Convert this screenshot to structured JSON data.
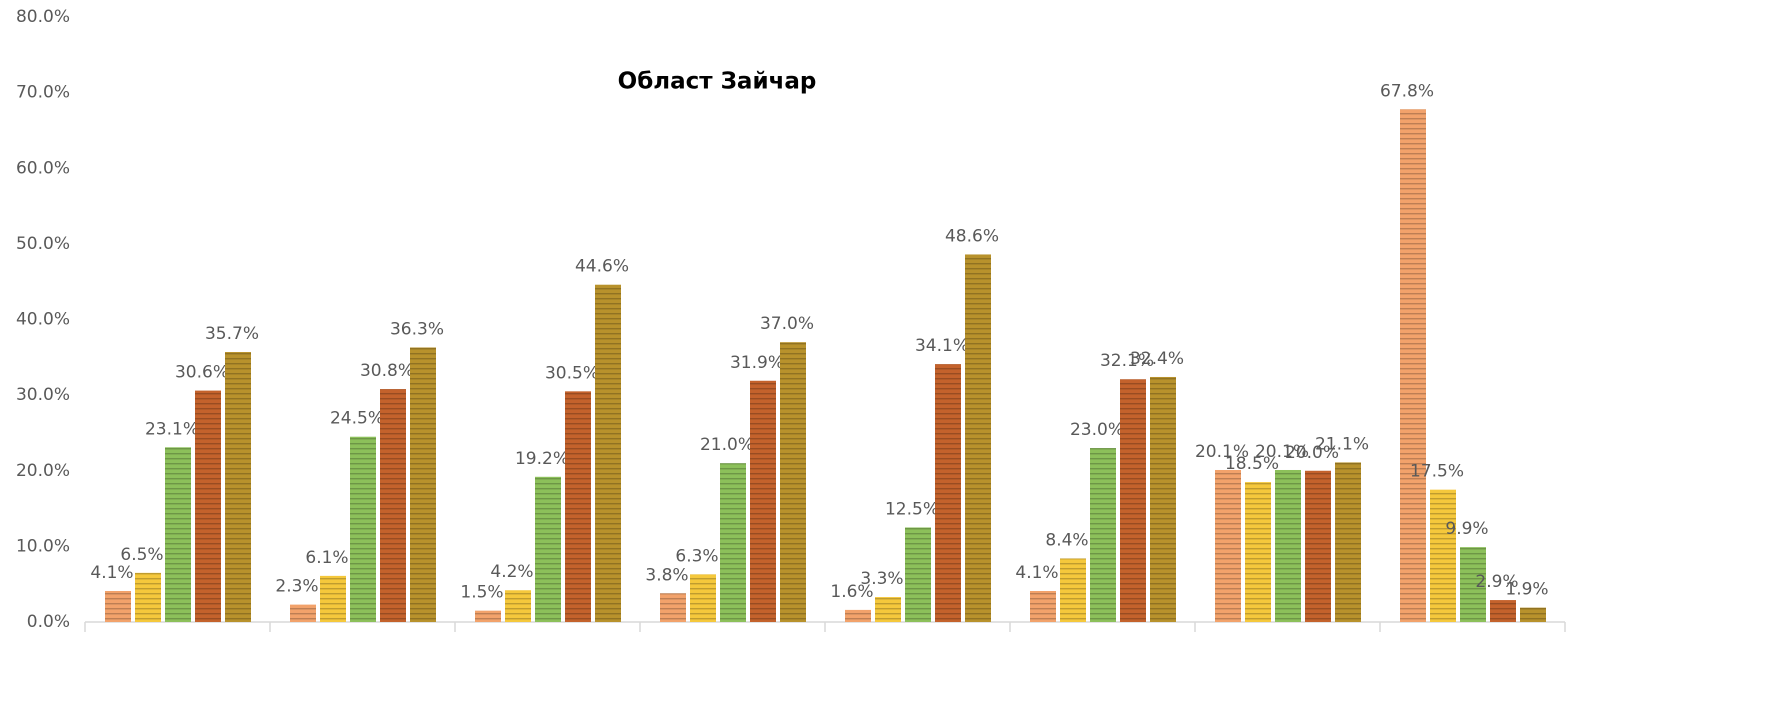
{
  "chart_data": {
    "type": "bar",
    "title": "Област Зайчар",
    "categories": [
      null,
      null,
      null,
      null,
      null,
      null,
      null,
      null
    ],
    "series": [
      {
        "color": "#f2a26b",
        "values": [
          4.1,
          2.3,
          1.5,
          3.8,
          1.6,
          4.1,
          20.1,
          67.8
        ],
        "value_labels": [
          "4.1%",
          "2.3%",
          "1.5%",
          "3.8%",
          "1.6%",
          "4.1%",
          "20.1%",
          "67.8%"
        ]
      },
      {
        "color": "#f5c83c",
        "values": [
          6.5,
          6.1,
          4.2,
          6.3,
          3.3,
          8.4,
          18.5,
          17.5
        ],
        "value_labels": [
          "6.5%",
          "6.1%",
          "4.2%",
          "6.3%",
          "3.3%",
          "8.4%",
          "18.5%",
          "17.5%"
        ]
      },
      {
        "color": "#8cc05a",
        "values": [
          23.1,
          24.5,
          19.2,
          21.0,
          12.5,
          23.0,
          20.1,
          9.9
        ],
        "value_labels": [
          "23.1%",
          "24.5%",
          "19.2%",
          "21.0%",
          "12.5%",
          "23.0%",
          "20.1%",
          "9.9%"
        ]
      },
      {
        "color": "#c4622c",
        "values": [
          30.6,
          30.8,
          30.5,
          31.9,
          34.1,
          32.1,
          20.0,
          2.9
        ],
        "value_labels": [
          "30.6%",
          "30.8%",
          "30.5%",
          "31.9%",
          "34.1%",
          "32.1%",
          "20.0%",
          "2.9%"
        ]
      },
      {
        "color": "#b8922c",
        "values": [
          35.7,
          36.3,
          44.6,
          37.0,
          48.6,
          32.4,
          21.1,
          1.9
        ],
        "value_labels": [
          "35.7%",
          "36.3%",
          "44.6%",
          "37.0%",
          "48.6%",
          "32.4%",
          "21.1%",
          "1.9%"
        ]
      }
    ],
    "ylim": [
      0,
      80
    ],
    "yticks": [
      {
        "value": 0,
        "label": "0.0%"
      },
      {
        "value": 10,
        "label": "10.0%"
      },
      {
        "value": 20,
        "label": "20.0%"
      },
      {
        "value": 30,
        "label": "30.0%"
      },
      {
        "value": 40,
        "label": "40.0%"
      },
      {
        "value": 50,
        "label": "50.0%"
      },
      {
        "value": 60,
        "label": "60.0%"
      },
      {
        "value": 70,
        "label": "70.0%"
      },
      {
        "value": 80,
        "label": "80.0%"
      }
    ],
    "grid": false
  }
}
